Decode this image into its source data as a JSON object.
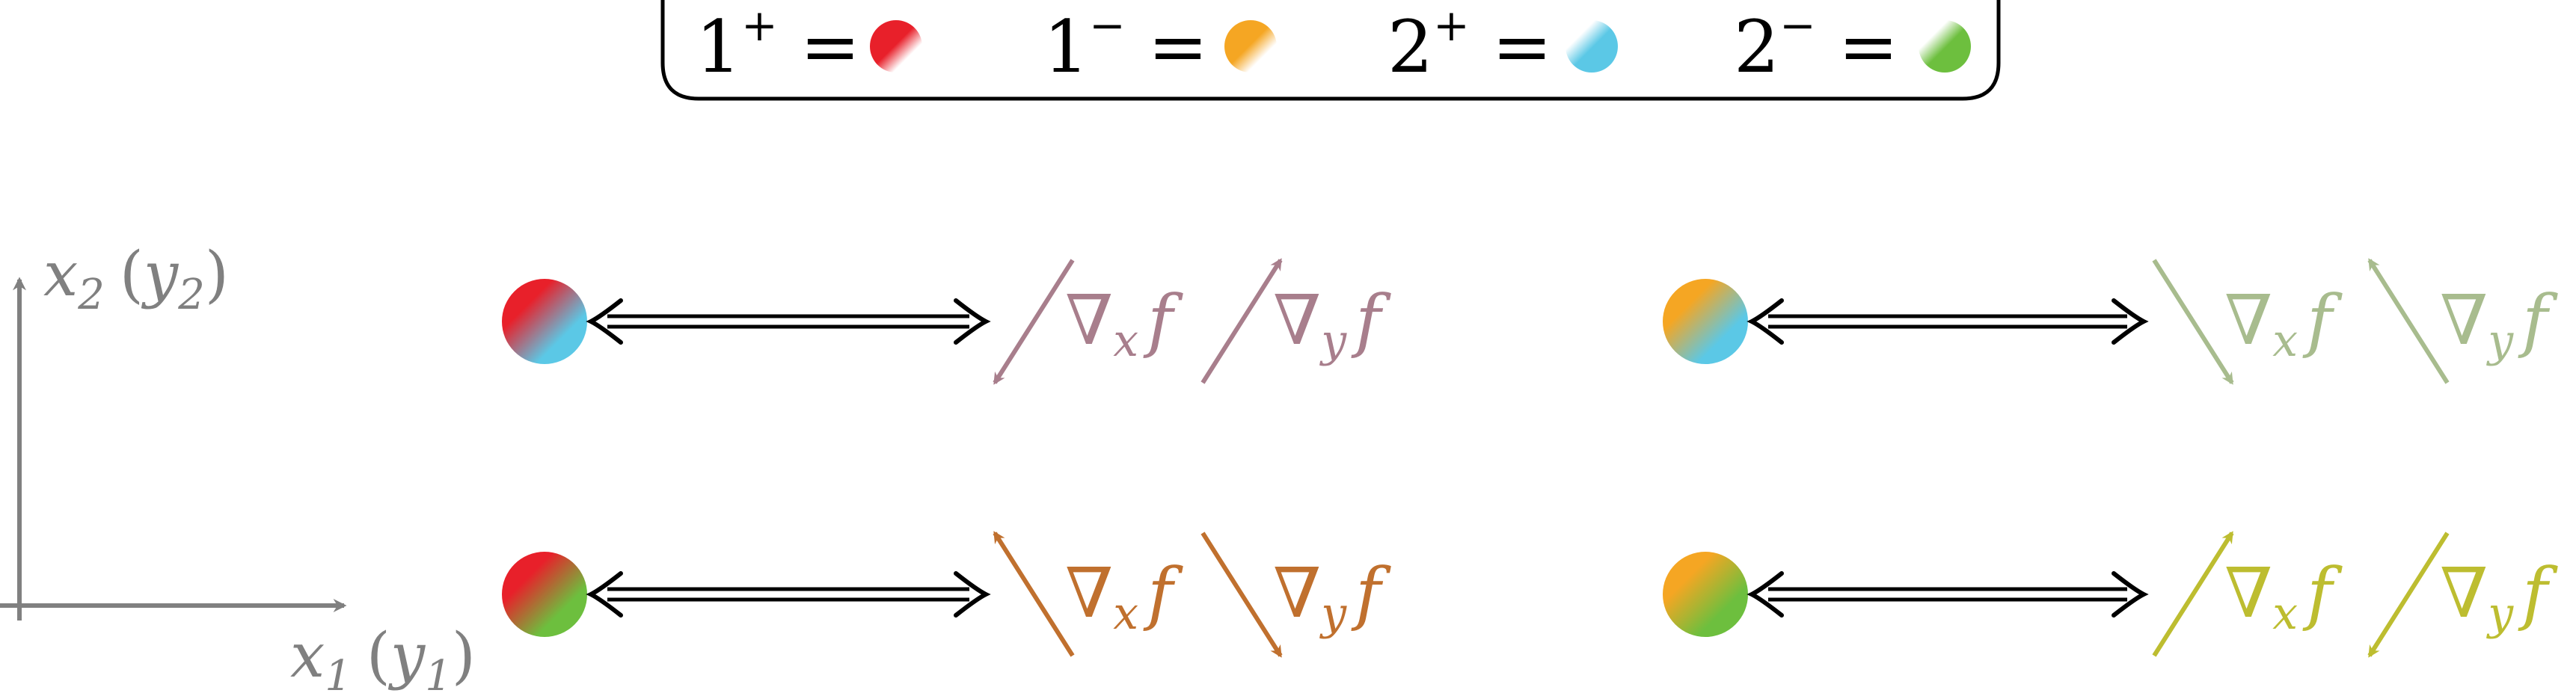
{
  "legend": {
    "items": [
      {
        "base": "1",
        "sign": "+",
        "color": "#e8202a"
      },
      {
        "base": "1",
        "sign": "−",
        "color": "#f5a623"
      },
      {
        "base": "2",
        "sign": "+",
        "color": "#5bc8e6"
      },
      {
        "base": "2",
        "sign": "−",
        "color": "#6dbf3e"
      }
    ],
    "equals": "="
  },
  "axes": {
    "x_label_main": "x",
    "x_label_sub": "1",
    "x_label_paren_main": "y",
    "x_label_paren_sub": "1",
    "y_label_main": "x",
    "y_label_sub": "2",
    "y_label_paren_main": "y",
    "y_label_paren_sub": "2",
    "color": "#808080"
  },
  "gradient_symbol": "∇",
  "function_symbol": "f",
  "panels": [
    {
      "id": "top-left",
      "colors": [
        "#e8202a",
        "#5bc8e6"
      ],
      "arrow_color": "#a87e8c",
      "grad_x": {
        "sub": "x",
        "direction": "down-left"
      },
      "grad_y": {
        "sub": "y",
        "direction": "up-right"
      }
    },
    {
      "id": "top-right",
      "colors": [
        "#f5a623",
        "#5bc8e6"
      ],
      "arrow_color": "#a8bc8e",
      "grad_x": {
        "sub": "x",
        "direction": "down-right"
      },
      "grad_y": {
        "sub": "y",
        "direction": "up-left"
      }
    },
    {
      "id": "bottom-left",
      "colors": [
        "#e8202a",
        "#6dbf3e"
      ],
      "arrow_color": "#c0702e",
      "grad_x": {
        "sub": "x",
        "direction": "up-left"
      },
      "grad_y": {
        "sub": "y",
        "direction": "down-right"
      }
    },
    {
      "id": "bottom-right",
      "colors": [
        "#f5a623",
        "#6dbf3e"
      ],
      "arrow_color": "#bdbd30",
      "grad_x": {
        "sub": "x",
        "direction": "up-right"
      },
      "grad_y": {
        "sub": "y",
        "direction": "down-left"
      }
    }
  ]
}
